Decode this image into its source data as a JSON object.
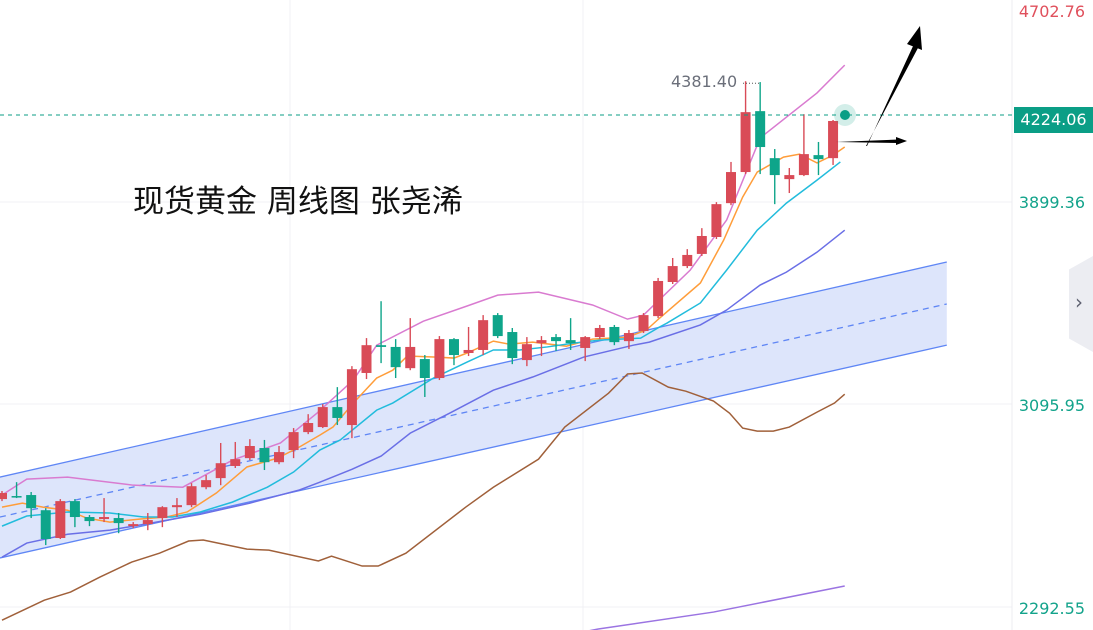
{
  "annotation": "现货黄金 周线图 张尧浠",
  "colors": {
    "up": "#d94b57",
    "down": "#0ea58a",
    "line_pink": "#d97bd0",
    "line_orange": "#ff9d3a",
    "line_cyan": "#22bcdc",
    "line_blue": "#6a6fe6",
    "line_brown": "#a0603a",
    "line_purple": "#9b74e2",
    "channel_line": "#5f86f5",
    "channel_fill": "#dbe4fb",
    "last_price_bg": "#0b9e86"
  },
  "price_axis": {
    "labels": [
      "4702.76",
      "3899.36",
      "3095.95",
      "2292.55"
    ],
    "last_price": "4224.06"
  },
  "high_marker": "4381.40",
  "side_tab_icon": "chevron-right-icon",
  "chart_data": {
    "type": "candlestick",
    "title": "现货黄金 周线图 张尧浠",
    "ylim": [
      2210,
      4702.76
    ],
    "grid": true,
    "candles_ohlc": [
      [
        2728,
        2760,
        2720,
        2752
      ],
      [
        2740,
        2795,
        2732,
        2736
      ],
      [
        2744,
        2756,
        2653,
        2692
      ],
      [
        2684,
        2692,
        2546,
        2570
      ],
      [
        2574,
        2728,
        2570,
        2720
      ],
      [
        2720,
        2728,
        2617,
        2657
      ],
      [
        2657,
        2665,
        2621,
        2641
      ],
      [
        2649,
        2732,
        2637,
        2657
      ],
      [
        2653,
        2673,
        2593,
        2633
      ],
      [
        2621,
        2637,
        2613,
        2629
      ],
      [
        2629,
        2673,
        2605,
        2645
      ],
      [
        2653,
        2700,
        2617,
        2696
      ],
      [
        2696,
        2732,
        2657,
        2704
      ],
      [
        2704,
        2791,
        2696,
        2779
      ],
      [
        2775,
        2823,
        2767,
        2803
      ],
      [
        2811,
        2950,
        2783,
        2870
      ],
      [
        2859,
        2954,
        2851,
        2886
      ],
      [
        2890,
        2965,
        2882,
        2938
      ],
      [
        2930,
        2962,
        2843,
        2874
      ],
      [
        2874,
        2938,
        2866,
        2914
      ],
      [
        2922,
        3009,
        2890,
        2993
      ],
      [
        2993,
        3064,
        2985,
        3029
      ],
      [
        3013,
        3104,
        3009,
        3092
      ],
      [
        3092,
        3171,
        3021,
        3049
      ],
      [
        3021,
        3254,
        2969,
        3242
      ],
      [
        3227,
        3365,
        3203,
        3337
      ],
      [
        3337,
        3511,
        3266,
        3330
      ],
      [
        3330,
        3361,
        3207,
        3250
      ],
      [
        3246,
        3444,
        3238,
        3330
      ],
      [
        3282,
        3298,
        3132,
        3207
      ],
      [
        3207,
        3373,
        3199,
        3361
      ],
      [
        3361,
        3365,
        3258,
        3298
      ],
      [
        3306,
        3409,
        3294,
        3318
      ],
      [
        3318,
        3456,
        3298,
        3436
      ],
      [
        3456,
        3464,
        3365,
        3373
      ],
      [
        3389,
        3405,
        3262,
        3286
      ],
      [
        3278,
        3369,
        3254,
        3341
      ],
      [
        3345,
        3373,
        3294,
        3357
      ],
      [
        3369,
        3381,
        3314,
        3353
      ],
      [
        3357,
        3444,
        3318,
        3345
      ],
      [
        3326,
        3373,
        3274,
        3369
      ],
      [
        3369,
        3417,
        3361,
        3405
      ],
      [
        3409,
        3417,
        3337,
        3349
      ],
      [
        3353,
        3397,
        3322,
        3385
      ],
      [
        3393,
        3464,
        3385,
        3456
      ],
      [
        3452,
        3603,
        3444,
        3591
      ],
      [
        3587,
        3682,
        3579,
        3650
      ],
      [
        3650,
        3717,
        3642,
        3694
      ],
      [
        3698,
        3800,
        3690,
        3769
      ],
      [
        3765,
        3903,
        3757,
        3895
      ],
      [
        3899,
        4062,
        3891,
        4022
      ],
      [
        4022,
        4381.4,
        4014,
        4259
      ],
      [
        4263,
        4378,
        4014,
        4121
      ],
      [
        4077,
        4113,
        3895,
        4010
      ],
      [
        3994,
        4038,
        3939,
        4010
      ],
      [
        4010,
        4251,
        4006,
        4093
      ],
      [
        4089,
        4141,
        4010,
        4073
      ],
      [
        4077,
        4228,
        4050,
        4224.06
      ]
    ],
    "lines": [
      {
        "key": "pink",
        "points": [
          [
            0,
            2744
          ],
          [
            1.7,
            2807
          ],
          [
            4.5,
            2815
          ],
          [
            9,
            2783
          ],
          [
            12.4,
            2775
          ],
          [
            15.8,
            2882
          ],
          [
            19.1,
            2950
          ],
          [
            21.6,
            3068
          ],
          [
            24.1,
            3199
          ],
          [
            25.7,
            3337
          ],
          [
            28.9,
            3432
          ],
          [
            31.9,
            3492
          ],
          [
            34,
            3535
          ],
          [
            36.8,
            3547
          ],
          [
            40.5,
            3496
          ],
          [
            42.9,
            3440
          ],
          [
            44,
            3456
          ],
          [
            47.2,
            3634
          ],
          [
            49.7,
            3832
          ],
          [
            52,
            4157
          ],
          [
            55.9,
            4335
          ],
          [
            57.8,
            4445
          ]
        ]
      },
      {
        "key": "orange",
        "points": [
          [
            0,
            2696
          ],
          [
            1.4,
            2712
          ],
          [
            2.8,
            2696
          ],
          [
            4.5,
            2684
          ],
          [
            5.8,
            2653
          ],
          [
            7.4,
            2637
          ],
          [
            9.5,
            2649
          ],
          [
            11.3,
            2657
          ],
          [
            12.7,
            2677
          ],
          [
            14.7,
            2752
          ],
          [
            16.8,
            2855
          ],
          [
            18.9,
            2890
          ],
          [
            20.4,
            2934
          ],
          [
            21.8,
            2981
          ],
          [
            22.7,
            3013
          ],
          [
            24.1,
            3108
          ],
          [
            25.7,
            3207
          ],
          [
            26.8,
            3238
          ],
          [
            27.8,
            3294
          ],
          [
            29.6,
            3290
          ],
          [
            31,
            3286
          ],
          [
            31.9,
            3306
          ],
          [
            33.7,
            3353
          ],
          [
            34.8,
            3341
          ],
          [
            36.4,
            3349
          ],
          [
            38.7,
            3333
          ],
          [
            40.5,
            3361
          ],
          [
            42.9,
            3369
          ],
          [
            44.2,
            3397
          ],
          [
            45.1,
            3444
          ],
          [
            47.9,
            3583
          ],
          [
            49.5,
            3753
          ],
          [
            50.8,
            3923
          ],
          [
            51.8,
            4022
          ],
          [
            53.6,
            4081
          ],
          [
            54.7,
            4093
          ],
          [
            55.9,
            4058
          ],
          [
            57,
            4089
          ],
          [
            57.8,
            4121
          ]
        ]
      },
      {
        "key": "cyan",
        "points": [
          [
            0,
            2621
          ],
          [
            1.7,
            2661
          ],
          [
            4.5,
            2677
          ],
          [
            7.4,
            2673
          ],
          [
            9.7,
            2657
          ],
          [
            11.7,
            2657
          ],
          [
            13.6,
            2677
          ],
          [
            15.8,
            2716
          ],
          [
            18.2,
            2775
          ],
          [
            20,
            2835
          ],
          [
            21.8,
            2922
          ],
          [
            23.2,
            2962
          ],
          [
            25.7,
            3080
          ],
          [
            26.8,
            3108
          ],
          [
            29.6,
            3207
          ],
          [
            31.9,
            3270
          ],
          [
            33.7,
            3318
          ],
          [
            35.5,
            3318
          ],
          [
            37.4,
            3330
          ],
          [
            39.2,
            3345
          ],
          [
            41,
            3357
          ],
          [
            43.8,
            3365
          ],
          [
            45.1,
            3409
          ],
          [
            45.6,
            3424
          ],
          [
            47.9,
            3504
          ],
          [
            49.7,
            3634
          ],
          [
            51.8,
            3792
          ],
          [
            53.8,
            3899
          ],
          [
            55.9,
            3990
          ],
          [
            57.5,
            4062
          ]
        ]
      },
      {
        "key": "blue",
        "points": [
          [
            0,
            2498
          ],
          [
            1.7,
            2554
          ],
          [
            4.5,
            2589
          ],
          [
            7.4,
            2605
          ],
          [
            10.2,
            2633
          ],
          [
            13.6,
            2668
          ],
          [
            17,
            2712
          ],
          [
            20.4,
            2764
          ],
          [
            21.8,
            2795
          ],
          [
            24,
            2846
          ],
          [
            26,
            2898
          ],
          [
            28,
            2989
          ],
          [
            30.7,
            3068
          ],
          [
            33.7,
            3159
          ],
          [
            36.4,
            3211
          ],
          [
            39.9,
            3290
          ],
          [
            43.3,
            3337
          ],
          [
            44.4,
            3349
          ],
          [
            47.9,
            3417
          ],
          [
            49.7,
            3476
          ],
          [
            52,
            3575
          ],
          [
            53.8,
            3626
          ],
          [
            55.9,
            3705
          ],
          [
            57.8,
            3792
          ]
        ]
      },
      {
        "key": "brown",
        "points": [
          [
            0,
            2249
          ],
          [
            2.9,
            2328
          ],
          [
            4.7,
            2360
          ],
          [
            6.7,
            2419
          ],
          [
            8.9,
            2479
          ],
          [
            10.8,
            2514
          ],
          [
            12.8,
            2562
          ],
          [
            13.8,
            2566
          ],
          [
            16.8,
            2530
          ],
          [
            18.3,
            2526
          ],
          [
            21.7,
            2483
          ],
          [
            22.6,
            2502
          ],
          [
            24.7,
            2463
          ],
          [
            25.8,
            2463
          ],
          [
            27.7,
            2514
          ],
          [
            31.8,
            2696
          ],
          [
            33.7,
            2775
          ],
          [
            36.8,
            2886
          ],
          [
            38.6,
            3013
          ],
          [
            41.6,
            3147
          ],
          [
            42.9,
            3223
          ],
          [
            43.9,
            3227
          ],
          [
            45.7,
            3171
          ],
          [
            46.9,
            3155
          ],
          [
            48.8,
            3116
          ],
          [
            49.9,
            3068
          ],
          [
            50.8,
            3009
          ],
          [
            51.8,
            2997
          ],
          [
            52.9,
            2997
          ],
          [
            54,
            3013
          ],
          [
            55.9,
            3072
          ],
          [
            57.1,
            3108
          ],
          [
            57.8,
            3143
          ]
        ]
      },
      {
        "key": "purple",
        "points": [
          [
            30,
            2091
          ],
          [
            40.9,
            2214
          ],
          [
            48.8,
            2281
          ],
          [
            57.8,
            2384
          ]
        ]
      }
    ],
    "channel": {
      "upper": [
        [
          -0.14,
          2815
        ],
        [
          64.8,
          3666
        ]
      ],
      "middle": [
        [
          -0.14,
          2657
        ],
        [
          64.8,
          3500
        ]
      ],
      "lower": [
        [
          -0.14,
          2495
        ],
        [
          64.8,
          3337
        ]
      ]
    }
  }
}
